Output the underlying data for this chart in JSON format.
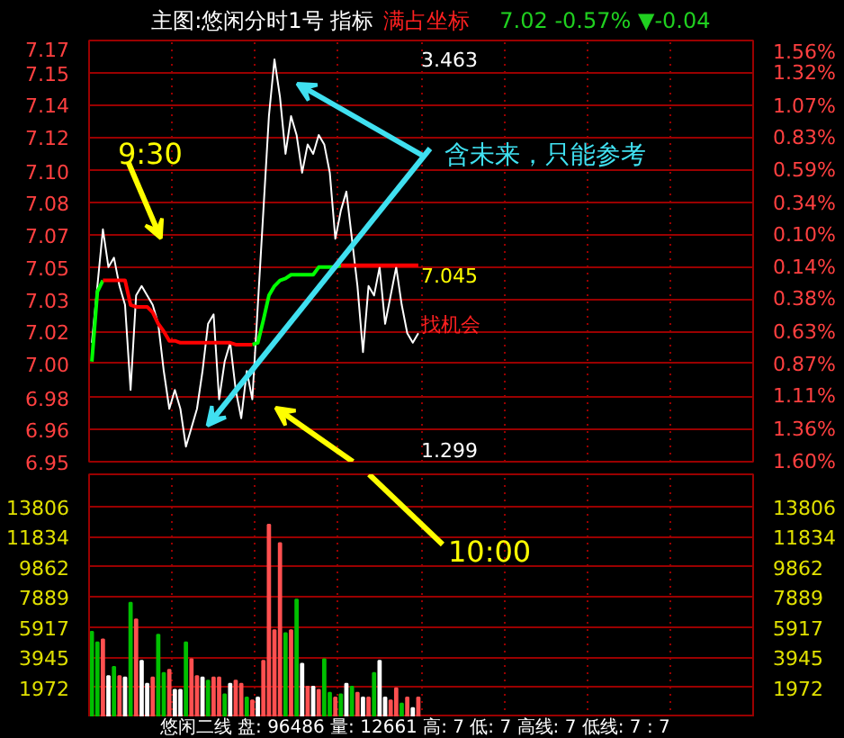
{
  "chart_data": [
    {
      "type": "line",
      "title": "主图:悠闲分时1号 指标",
      "subtitle": "满占坐标",
      "categories": [
        null,
        null,
        null,
        null,
        null,
        null,
        null,
        null,
        null,
        null,
        null,
        null,
        null,
        null,
        null,
        null,
        null,
        null,
        null,
        null,
        null,
        null,
        null,
        null,
        null,
        null,
        null,
        null,
        null,
        null,
        null,
        null,
        null,
        null,
        null,
        null,
        null,
        null,
        null,
        null,
        null,
        null,
        null,
        null,
        null,
        null,
        null,
        null,
        null,
        null,
        null,
        null,
        null,
        null,
        null,
        null,
        null,
        null,
        null,
        null,
        null,
        null,
        null,
        null,
        null,
        null,
        null,
        null,
        null,
        null,
        null,
        null,
        null,
        null,
        null,
        null,
        null,
        null,
        null,
        null,
        null,
        null,
        null,
        null,
        null,
        null,
        null,
        null,
        null,
        null,
        null,
        null,
        null,
        null,
        null,
        null,
        null,
        null,
        null,
        null,
        null,
        null,
        null,
        null,
        null,
        null,
        null,
        null,
        null,
        null,
        null,
        null,
        null,
        null,
        null,
        null,
        null,
        null,
        null,
        null
      ],
      "series": [
        {
          "color": "#ffffff",
          "values": [
            7.01,
            7.04,
            7.07,
            7.05,
            7.055,
            7.04,
            7.03,
            6.985,
            7.035,
            7.04,
            7.035,
            7.03,
            7.02,
            6.995,
            6.975,
            6.985,
            6.975,
            6.955,
            6.965,
            6.975,
            6.995,
            7.02,
            7.025,
            6.98,
            7.0,
            7.01,
            6.985,
            6.97,
            6.995,
            6.98,
            7.03,
            7.08,
            7.13,
            7.16,
            7.14,
            7.11,
            7.13,
            7.12,
            7.1,
            7.115,
            7.11,
            7.12,
            7.115,
            7.1,
            7.065,
            7.08,
            7.09,
            7.065,
            7.04,
            7.005,
            7.04,
            7.035,
            7.05,
            7.02,
            7.035,
            7.05,
            7.03,
            7.015,
            7.01,
            7.015,
            null,
            null,
            null,
            null,
            null,
            null,
            null,
            null,
            null,
            null,
            null,
            null,
            null,
            null,
            null,
            null,
            null,
            null,
            null,
            null,
            null,
            null,
            null,
            null,
            null,
            null,
            null,
            null,
            null,
            null,
            null,
            null,
            null,
            null,
            null,
            null,
            null,
            null,
            null,
            null,
            null,
            null,
            null,
            null,
            null,
            null,
            null,
            null,
            null,
            null,
            null,
            null,
            null,
            null,
            null,
            null,
            null,
            null,
            null,
            null
          ]
        },
        {
          "color": "#00ff00",
          "values": [
            7.0,
            7.037,
            7.043,
            null,
            null,
            null,
            null,
            null,
            null,
            null,
            null,
            null,
            null,
            null,
            null,
            null,
            null,
            null,
            null,
            null,
            null,
            null,
            null,
            null,
            null,
            null,
            null,
            null,
            null,
            7.009,
            7.01,
            7.022,
            7.035,
            7.04,
            7.043,
            7.044,
            7.046,
            7.046,
            7.046,
            7.046,
            7.046,
            7.05,
            7.05,
            7.05,
            7.05,
            7.051,
            null,
            null,
            null,
            null,
            null,
            null,
            null,
            null,
            null,
            null,
            null,
            null,
            null,
            null,
            null,
            null,
            null,
            null,
            null,
            null,
            null,
            null,
            null,
            null,
            null,
            null,
            null,
            null,
            null,
            null,
            null,
            null,
            null,
            null,
            null,
            null,
            null,
            null,
            null,
            null,
            null,
            null,
            null,
            null,
            null,
            null,
            null,
            null,
            null,
            null,
            null,
            null,
            null,
            null,
            null,
            null,
            null,
            null,
            null,
            null,
            null,
            null,
            null,
            null,
            null,
            null,
            null,
            null,
            null,
            null,
            null,
            null,
            null,
            null
          ]
        },
        {
          "color": "#ff0000",
          "values": [
            null,
            null,
            7.043,
            7.043,
            7.043,
            7.043,
            7.043,
            7.03,
            7.029,
            7.029,
            7.029,
            7.026,
            7.02,
            7.016,
            7.011,
            7.011,
            7.01,
            7.01,
            7.01,
            7.01,
            7.01,
            7.01,
            7.01,
            7.01,
            7.01,
            7.01,
            7.009,
            7.009,
            7.009,
            7.009,
            null,
            null,
            null,
            null,
            null,
            null,
            null,
            null,
            null,
            null,
            null,
            null,
            null,
            null,
            null,
            7.051,
            7.051,
            7.051,
            7.051,
            7.051,
            7.051,
            7.051,
            7.051,
            7.051,
            7.051,
            7.051,
            7.051,
            7.051,
            7.051,
            7.051,
            null,
            null,
            null,
            null,
            null,
            null,
            null,
            null,
            null,
            null,
            null,
            null,
            null,
            null,
            null,
            null,
            null,
            null,
            null,
            null,
            null,
            null,
            null,
            null,
            null,
            null,
            null,
            null,
            null,
            null,
            null,
            null,
            null,
            null,
            null,
            null,
            null,
            null,
            null,
            null,
            null,
            null,
            null,
            null,
            null,
            null,
            null,
            null,
            null,
            null,
            null,
            null,
            null,
            null,
            null,
            null,
            null,
            null,
            null,
            null
          ]
        }
      ],
      "ylim": [
        6.947,
        7.17
      ],
      "yticks": [
        {
          "value": 7.17,
          "label": "7.17"
        },
        {
          "value": 7.153,
          "label": "7.15"
        },
        {
          "value": 7.136,
          "label": "7.14"
        },
        {
          "value": 7.119,
          "label": "7.12"
        },
        {
          "value": 7.101,
          "label": "7.10"
        },
        {
          "value": 7.084,
          "label": "7.08"
        },
        {
          "value": 7.067,
          "label": "7.07"
        },
        {
          "value": 7.05,
          "label": "7.05"
        },
        {
          "value": 7.033,
          "label": "7.03"
        },
        {
          "value": 7.016,
          "label": "7.02"
        },
        {
          "value": 6.999,
          "label": "7.00"
        },
        {
          "value": 6.981,
          "label": "6.98"
        },
        {
          "value": 6.964,
          "label": "6.96"
        },
        {
          "value": 6.947,
          "label": "6.95"
        }
      ],
      "y2lim": [
        -1.6,
        1.56
      ],
      "y2ticks": [
        {
          "value": 1.56,
          "label": "1.56%"
        },
        {
          "value": 1.32,
          "label": "1.32%"
        },
        {
          "value": 1.07,
          "label": "1.07%"
        },
        {
          "value": 0.83,
          "label": "0.83%"
        },
        {
          "value": 0.59,
          "label": "0.59%"
        },
        {
          "value": 0.34,
          "label": "0.34%"
        },
        {
          "value": 0.1,
          "label": "0.10%"
        },
        {
          "value": -0.14,
          "label": "0.14%"
        },
        {
          "value": -0.38,
          "label": "0.38%"
        },
        {
          "value": -0.63,
          "label": "0.63%"
        },
        {
          "value": -0.87,
          "label": "0.87%"
        },
        {
          "value": -1.11,
          "label": "1.11%"
        },
        {
          "value": -1.36,
          "label": "1.36%"
        },
        {
          "value": -1.6,
          "label": "1.60%"
        }
      ],
      "grid": true,
      "annotations": [
        "7.02 -0.57% ▼-0.04",
        "9:30",
        "含未来，只能参考",
        "3.463",
        "7.045",
        "找机会",
        "1.299"
      ]
    },
    {
      "type": "bar",
      "categories": [
        null,
        null,
        null,
        null,
        null,
        null,
        null,
        null,
        null,
        null,
        null,
        null,
        null,
        null,
        null,
        null,
        null,
        null,
        null,
        null,
        null,
        null,
        null,
        null,
        null,
        null,
        null,
        null,
        null,
        null,
        null,
        null,
        null,
        null,
        null,
        null,
        null,
        null,
        null,
        null,
        null,
        null,
        null,
        null,
        null,
        null,
        null,
        null,
        null,
        null,
        null,
        null,
        null,
        null,
        null,
        null,
        null,
        null,
        null,
        null,
        null,
        null,
        null,
        null,
        null,
        null,
        null,
        null,
        null,
        null,
        null,
        null,
        null,
        null,
        null,
        null,
        null,
        null,
        null,
        null,
        null,
        null,
        null,
        null,
        null,
        null,
        null,
        null,
        null,
        null,
        null,
        null,
        null,
        null,
        null,
        null,
        null,
        null,
        null,
        null,
        null,
        null,
        null,
        null,
        null,
        null,
        null,
        null,
        null,
        null,
        null,
        null,
        null,
        null,
        null,
        null,
        null,
        null,
        null,
        null
      ],
      "values": [
        5600,
        4900,
        5100,
        2700,
        3300,
        2700,
        2600,
        7500,
        6400,
        3700,
        2200,
        2600,
        5400,
        2900,
        3100,
        1800,
        1800,
        4900,
        3800,
        2700,
        2600,
        2400,
        2600,
        2600,
        1500,
        2200,
        2400,
        2200,
        1300,
        1100,
        1300,
        3700,
        12600,
        5700,
        11400,
        5500,
        5700,
        7700,
        3500,
        2000,
        2000,
        1800,
        3800,
        1600,
        1300,
        1500,
        2200,
        2000,
        1600,
        1300,
        1300,
        2900,
        3700,
        1300,
        1100,
        1900,
        900,
        1300,
        600,
        1300,
        null,
        null,
        null,
        null,
        null,
        null,
        null,
        null,
        null,
        null,
        null,
        null,
        null,
        null,
        null,
        null,
        null,
        null,
        null,
        null,
        null,
        null,
        null,
        null,
        null,
        null,
        null,
        null,
        null,
        null,
        null,
        null,
        null,
        null,
        null,
        null,
        null,
        null,
        null,
        null,
        null,
        null,
        null,
        null,
        null,
        null,
        null,
        null,
        null,
        null,
        null,
        null,
        null,
        null,
        null,
        null,
        null,
        null,
        null,
        null
      ],
      "colors": [
        "#00c000",
        "#00c000",
        "#ff5050",
        "#ffffff",
        "#00c000",
        "#ff5050",
        "#ffffff",
        "#00c000",
        "#ff5050",
        "#ffffff",
        "#ffffff",
        "#ff5050",
        "#00c000",
        "#00c000",
        "#ff5050",
        "#ffffff",
        "#ffffff",
        "#00c000",
        "#ff5050",
        "#ff5050",
        "#ffffff",
        "#00c000",
        "#ff5050",
        "#ff5050",
        "#00c000",
        "#ffffff",
        "#ff5050",
        "#ff5050",
        "#00c000",
        "#ff5050",
        "#ffffff",
        "#ff5050",
        "#ff5050",
        "#ff5050",
        "#ff5050",
        "#00c000",
        "#ff5050",
        "#00c000",
        "#ffffff",
        "#ff5050",
        "#ffffff",
        "#ff5050",
        "#00c000",
        "#00c000",
        "#ff5050",
        "#00c000",
        "#ffffff",
        "#00c000",
        "#ff5050",
        "#ffffff",
        "#ff5050",
        "#00c000",
        "#ffffff",
        "#ffffff",
        "#ff5050",
        "#ff5050",
        "#00c000",
        "#ff5050",
        "#ffffff",
        "#ff5050",
        null,
        null,
        null,
        null,
        null,
        null,
        null,
        null,
        null,
        null,
        null,
        null,
        null,
        null,
        null,
        null,
        null,
        null,
        null,
        null,
        null,
        null,
        null,
        null,
        null,
        null,
        null,
        null,
        null,
        null,
        null,
        null,
        null,
        null,
        null,
        null,
        null,
        null,
        null,
        null,
        null,
        null,
        null,
        null,
        null,
        null,
        null,
        null,
        null,
        null,
        null,
        null,
        null,
        null,
        null,
        null,
        null,
        null,
        null,
        null
      ],
      "ylim": [
        0,
        15900
      ],
      "yticks": [
        1972,
        3945,
        5917,
        7889,
        9862,
        11834,
        13806
      ],
      "y2lim": [
        0,
        15900
      ],
      "y2ticks": [
        1972,
        3945,
        5917,
        7889,
        9862,
        11834,
        13806
      ],
      "grid": true,
      "annotations": [
        "10:00",
        "悠闲二线 盘: 96486 量: 12661 高: 7 低: 7 高线: 7 低线: 7 : 7"
      ]
    }
  ]
}
